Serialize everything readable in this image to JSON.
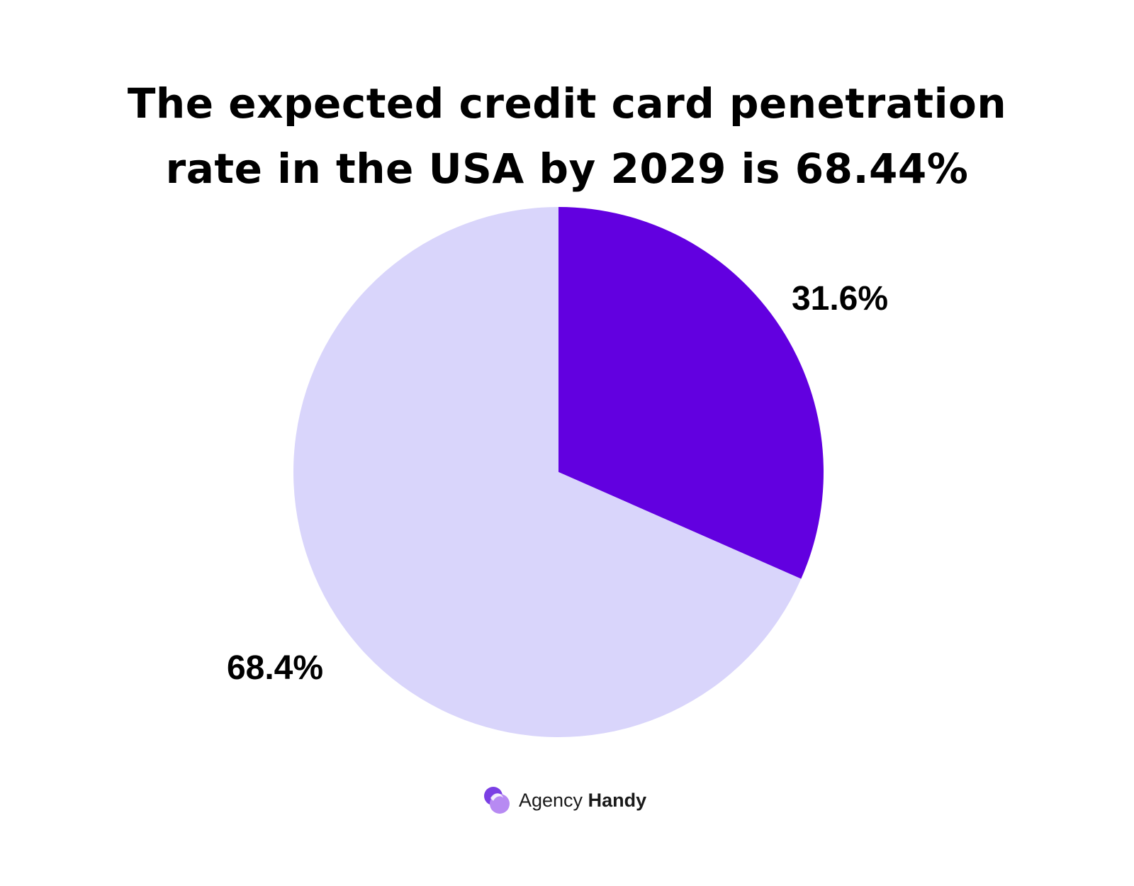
{
  "title": {
    "line1": "The expected credit card penetration",
    "line2": "rate in the USA by 2029 is 68.44%"
  },
  "chart_data": {
    "type": "pie",
    "title": "The expected credit card penetration rate in the USA by 2029 is 68.44%",
    "start": "12 o'clock, clockwise",
    "slices": [
      {
        "value": 31.6,
        "label": "31.6%",
        "color": "#6200e0"
      },
      {
        "value": 68.4,
        "label": "68.4%",
        "color": "#d9d5fb"
      }
    ]
  },
  "brand": {
    "name_light": "Agency",
    "name_bold": "Handy",
    "logo_icon": "agency-handy-logo",
    "colors": [
      "#7b3fe4",
      "#b78af2"
    ]
  }
}
